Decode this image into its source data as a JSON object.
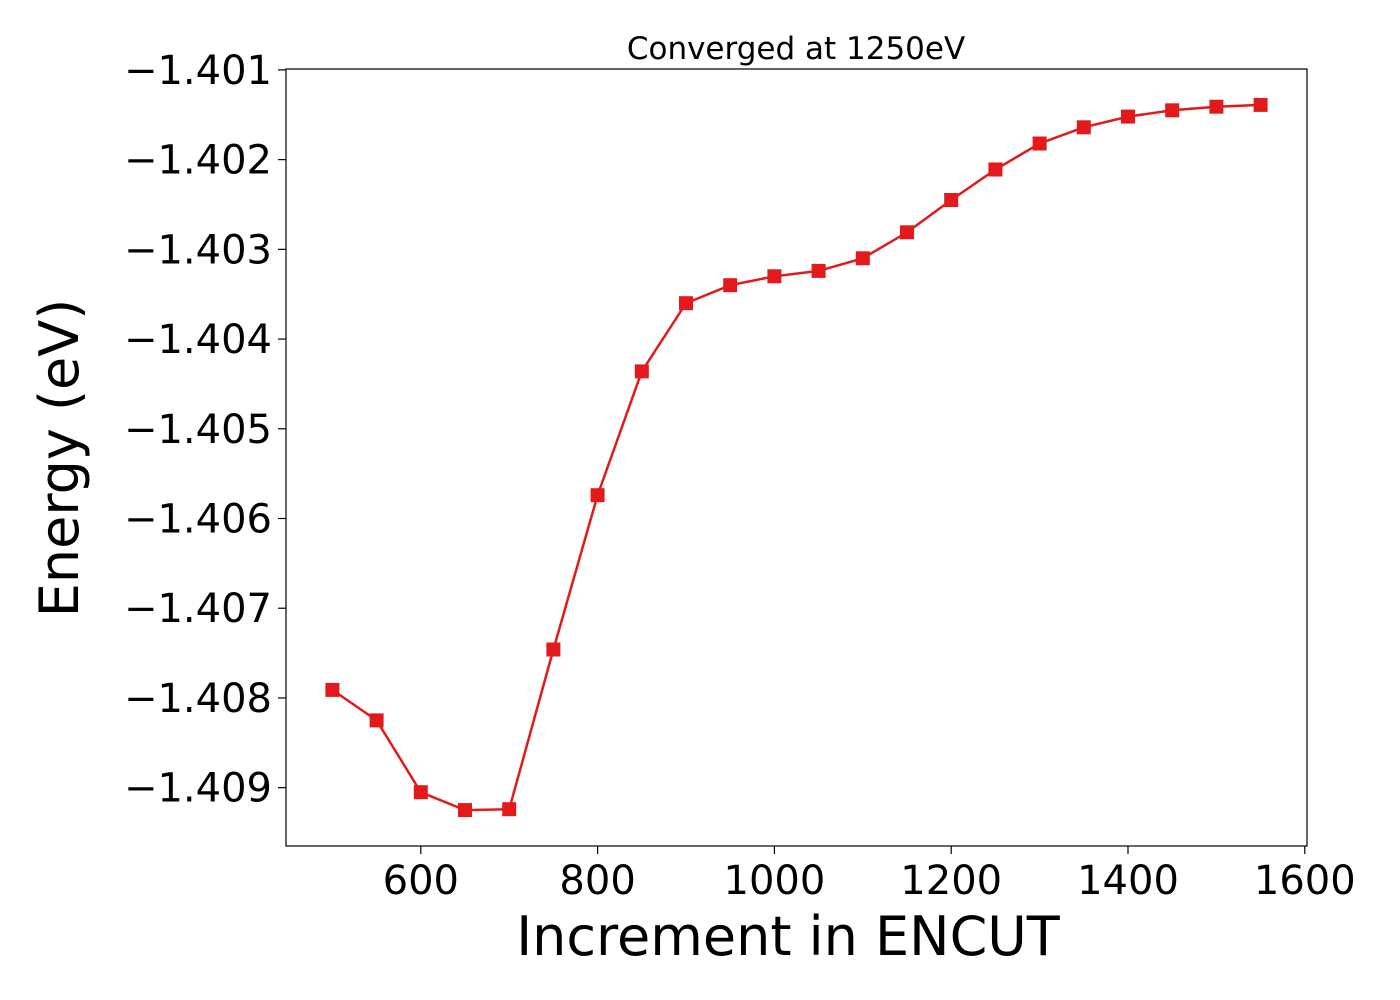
{
  "chart_data": {
    "type": "line",
    "title": "Converged at 1250eV",
    "xlabel": "Increment in ENCUT",
    "ylabel": "Energy (eV)",
    "xlim": [
      447.5,
      1602.5
    ],
    "ylim": [
      -1.40965,
      -1.40099
    ],
    "xticks": [
      600,
      800,
      1000,
      1200,
      1400,
      1600
    ],
    "xtick_labels": [
      "600",
      "800",
      "1000",
      "1200",
      "1400",
      "1600"
    ],
    "yticks": [
      -1.401,
      -1.402,
      -1.403,
      -1.404,
      -1.405,
      -1.406,
      -1.407,
      -1.408,
      -1.409
    ],
    "ytick_labels": [
      "−1.401",
      "−1.402",
      "−1.403",
      "−1.404",
      "−1.405",
      "−1.406",
      "−1.407",
      "−1.408",
      "−1.409"
    ],
    "grid": false,
    "series": [
      {
        "color": "#e31a1c",
        "marker": "square",
        "x": [
          500,
          550,
          600,
          650,
          700,
          750,
          800,
          850,
          900,
          950,
          1000,
          1050,
          1100,
          1150,
          1200,
          1250,
          1300,
          1350,
          1400,
          1450,
          1500,
          1550
        ],
        "y": [
          -1.40791,
          -1.40825,
          -1.40905,
          -1.40925,
          -1.40924,
          -1.40746,
          -1.40574,
          -1.40436,
          -1.4036,
          -1.4034,
          -1.4033,
          -1.40324,
          -1.4031,
          -1.40281,
          -1.40245,
          -1.40211,
          -1.40182,
          -1.40164,
          -1.40152,
          -1.40145,
          -1.40141,
          -1.40139
        ]
      }
    ]
  }
}
